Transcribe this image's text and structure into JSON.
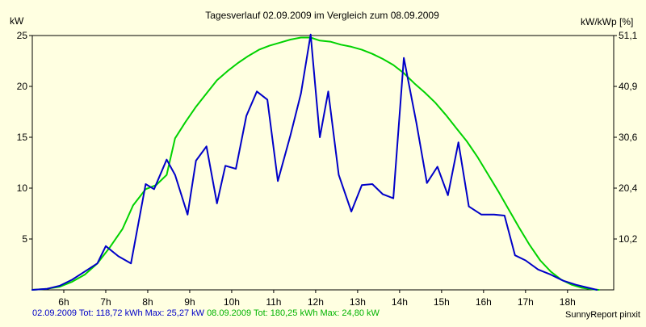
{
  "chart_data": {
    "type": "line",
    "title": "Tagesverlauf 02.09.2009 im Vergleich zum 08.09.2009",
    "ylabel_left": "kW",
    "ylabel_right": "kW/kWp [%]",
    "x_tick_labels": [
      "6h",
      "7h",
      "8h",
      "9h",
      "10h",
      "11h",
      "12h",
      "13h",
      "14h",
      "15h",
      "16h",
      "17h",
      "18h"
    ],
    "x_tick_hours": [
      6,
      7,
      8,
      9,
      10,
      11,
      12,
      13,
      14,
      15,
      16,
      17,
      18
    ],
    "xlim": [
      5.25,
      19.1
    ],
    "ylim": [
      0,
      25
    ],
    "y_ticks": [
      5,
      10,
      15,
      20,
      25
    ],
    "y_tick_labels": [
      "5",
      "10",
      "15",
      "20",
      "25"
    ],
    "y_right_tick_labels": [
      "10,2",
      "20,4",
      "30,6",
      "40,9",
      "51,1"
    ],
    "grid": true,
    "series": [
      {
        "name": "02.09.2009",
        "color": "#0000c8",
        "points": [
          [
            5.25,
            0
          ],
          [
            5.6,
            0.1
          ],
          [
            5.9,
            0.4
          ],
          [
            6.2,
            1.0
          ],
          [
            6.5,
            1.8
          ],
          [
            6.8,
            2.6
          ],
          [
            7.0,
            4.3
          ],
          [
            7.3,
            3.3
          ],
          [
            7.6,
            2.6
          ],
          [
            7.95,
            10.4
          ],
          [
            8.15,
            9.9
          ],
          [
            8.45,
            12.8
          ],
          [
            8.65,
            11.3
          ],
          [
            8.95,
            7.4
          ],
          [
            9.15,
            12.7
          ],
          [
            9.4,
            14.1
          ],
          [
            9.65,
            8.5
          ],
          [
            9.85,
            12.2
          ],
          [
            10.1,
            11.9
          ],
          [
            10.35,
            17.1
          ],
          [
            10.6,
            19.5
          ],
          [
            10.85,
            18.7
          ],
          [
            11.1,
            10.7
          ],
          [
            11.4,
            15.2
          ],
          [
            11.65,
            19.3
          ],
          [
            11.88,
            25.1
          ],
          [
            12.1,
            15.0
          ],
          [
            12.3,
            19.5
          ],
          [
            12.55,
            11.3
          ],
          [
            12.85,
            7.7
          ],
          [
            13.1,
            10.3
          ],
          [
            13.35,
            10.4
          ],
          [
            13.6,
            9.4
          ],
          [
            13.85,
            9.0
          ],
          [
            14.1,
            22.8
          ],
          [
            14.4,
            16.4
          ],
          [
            14.65,
            10.5
          ],
          [
            14.9,
            12.1
          ],
          [
            15.15,
            9.3
          ],
          [
            15.4,
            14.5
          ],
          [
            15.65,
            8.2
          ],
          [
            15.95,
            7.4
          ],
          [
            16.25,
            7.4
          ],
          [
            16.5,
            7.3
          ],
          [
            16.75,
            3.4
          ],
          [
            17.0,
            2.9
          ],
          [
            17.3,
            2.0
          ],
          [
            17.6,
            1.5
          ],
          [
            17.9,
            0.9
          ],
          [
            18.2,
            0.5
          ],
          [
            18.5,
            0.2
          ],
          [
            18.7,
            0
          ]
        ]
      },
      {
        "name": "08.09.2009",
        "color": "#00d200",
        "points": [
          [
            5.25,
            0
          ],
          [
            5.6,
            0.1
          ],
          [
            5.9,
            0.3
          ],
          [
            6.2,
            0.8
          ],
          [
            6.5,
            1.5
          ],
          [
            6.8,
            2.6
          ],
          [
            7.1,
            4.2
          ],
          [
            7.4,
            6.0
          ],
          [
            7.65,
            8.3
          ],
          [
            7.95,
            9.9
          ],
          [
            8.2,
            10.3
          ],
          [
            8.45,
            11.3
          ],
          [
            8.65,
            14.9
          ],
          [
            8.9,
            16.5
          ],
          [
            9.15,
            18.0
          ],
          [
            9.4,
            19.3
          ],
          [
            9.65,
            20.6
          ],
          [
            9.9,
            21.5
          ],
          [
            10.15,
            22.3
          ],
          [
            10.4,
            23.0
          ],
          [
            10.65,
            23.6
          ],
          [
            10.9,
            24.0
          ],
          [
            11.15,
            24.3
          ],
          [
            11.4,
            24.6
          ],
          [
            11.65,
            24.8
          ],
          [
            11.88,
            24.8
          ],
          [
            12.1,
            24.5
          ],
          [
            12.35,
            24.4
          ],
          [
            12.6,
            24.1
          ],
          [
            12.85,
            23.9
          ],
          [
            13.1,
            23.6
          ],
          [
            13.35,
            23.2
          ],
          [
            13.6,
            22.7
          ],
          [
            13.85,
            22.1
          ],
          [
            14.1,
            21.3
          ],
          [
            14.35,
            20.3
          ],
          [
            14.6,
            19.4
          ],
          [
            14.85,
            18.4
          ],
          [
            15.1,
            17.2
          ],
          [
            15.35,
            15.9
          ],
          [
            15.6,
            14.6
          ],
          [
            15.85,
            13.1
          ],
          [
            16.1,
            11.4
          ],
          [
            16.35,
            9.7
          ],
          [
            16.6,
            7.9
          ],
          [
            16.85,
            6.1
          ],
          [
            17.1,
            4.4
          ],
          [
            17.35,
            2.9
          ],
          [
            17.6,
            1.8
          ],
          [
            17.85,
            1.0
          ],
          [
            18.1,
            0.5
          ],
          [
            18.35,
            0.2
          ],
          [
            18.6,
            0.05
          ],
          [
            18.75,
            0
          ]
        ]
      }
    ]
  },
  "footer": {
    "series1_label": "02.09.2009 Tot: 118,72 kWh Max: 25,27 kW",
    "series2_label": "08.09.2009 Tot: 180,25 kWh Max: 24,80 kW",
    "brand": "SunnyReport pinxit"
  }
}
